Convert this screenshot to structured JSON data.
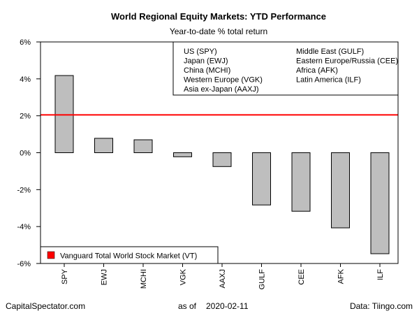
{
  "chart_data": {
    "type": "bar",
    "title": "World Regional Equity Markets: YTD Performance",
    "subtitle": "Year-to-date % total return",
    "categories": [
      "SPY",
      "EWJ",
      "MCHI",
      "VGK",
      "AAXJ",
      "GULF",
      "CEE",
      "AFK",
      "ILF"
    ],
    "values": [
      4.18,
      0.78,
      0.7,
      -0.22,
      -0.75,
      -2.83,
      -3.17,
      -4.07,
      -5.47
    ],
    "ylim": [
      -6,
      6
    ],
    "yticks": [
      -6,
      -4,
      -2,
      0,
      2,
      4,
      6
    ],
    "ytick_labels": [
      "-6%",
      "-4%",
      "-2%",
      "0%",
      "2%",
      "4%",
      "6%"
    ],
    "reference_line": {
      "value": 2.05,
      "color": "#ff0000"
    },
    "bar_color": "#bebebe",
    "grid": false,
    "legend_top": {
      "placement": "top-right",
      "col1": [
        "US (SPY)",
        "Japan (EWJ)",
        "China (MCHI)",
        "Western Europe (VGK)",
        "Asia ex-Japan (AAXJ)"
      ],
      "col2": [
        "Middle East (GULF)",
        "Eastern Europe/Russia (CEE)",
        "Africa (AFK)",
        "Latin America (ILF)"
      ]
    },
    "legend_bottom": {
      "placement": "bottom-left",
      "label": "Vanguard Total World Stock Market (VT)",
      "color": "#ff0000"
    }
  },
  "footer": {
    "left": "CapitalSpectator.com",
    "center_prefix": "as of",
    "date": "2020-02-11",
    "right": "Data: Tiingo.com"
  }
}
